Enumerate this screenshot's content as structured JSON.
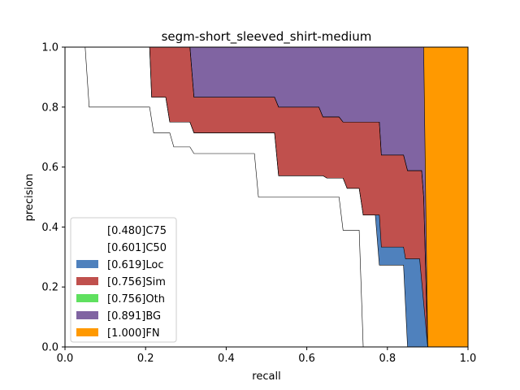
{
  "chart_data": {
    "type": "area",
    "title": "segm-short_sleeved_shirt-medium",
    "xlabel": "recall",
    "ylabel": "precision",
    "xlim": [
      0.0,
      1.0
    ],
    "ylim": [
      0.0,
      1.0
    ],
    "xticks": [
      "0.0",
      "0.2",
      "0.4",
      "0.6",
      "0.8",
      "1.0"
    ],
    "yticks": [
      "0.0",
      "0.2",
      "0.4",
      "0.6",
      "0.8",
      "1.0"
    ],
    "grid": false,
    "legend_position": "lower-left",
    "series": [
      {
        "name": "[0.480]C75",
        "color": "#ffffff",
        "points": [
          [
            0.0,
            1.0
          ],
          [
            0.05,
            1.0
          ],
          [
            0.06,
            0.8
          ],
          [
            0.21,
            0.8
          ],
          [
            0.22,
            0.714
          ],
          [
            0.26,
            0.714
          ],
          [
            0.27,
            0.667
          ],
          [
            0.31,
            0.667
          ],
          [
            0.32,
            0.645
          ],
          [
            0.47,
            0.645
          ],
          [
            0.48,
            0.5
          ],
          [
            0.68,
            0.5
          ],
          [
            0.69,
            0.389
          ],
          [
            0.73,
            0.389
          ],
          [
            0.74,
            0.0
          ]
        ]
      },
      {
        "name": "[0.601]C50",
        "color": "#ffffff",
        "points": [
          [
            0.0,
            1.0
          ],
          [
            0.21,
            1.0
          ],
          [
            0.215,
            0.833
          ],
          [
            0.25,
            0.833
          ],
          [
            0.26,
            0.75
          ],
          [
            0.31,
            0.75
          ],
          [
            0.32,
            0.714
          ],
          [
            0.52,
            0.714
          ],
          [
            0.53,
            0.571
          ],
          [
            0.64,
            0.571
          ],
          [
            0.65,
            0.563
          ],
          [
            0.69,
            0.563
          ],
          [
            0.7,
            0.529
          ],
          [
            0.73,
            0.529
          ],
          [
            0.74,
            0.44
          ],
          [
            0.77,
            0.44
          ],
          [
            0.78,
            0.273
          ],
          [
            0.84,
            0.273
          ],
          [
            0.85,
            0.0
          ]
        ]
      },
      {
        "name": "[0.619]Loc",
        "color": "#4f81bd",
        "points": [
          [
            0.0,
            1.0
          ],
          [
            0.21,
            1.0
          ],
          [
            0.215,
            0.833
          ],
          [
            0.25,
            0.833
          ],
          [
            0.26,
            0.75
          ],
          [
            0.31,
            0.75
          ],
          [
            0.32,
            0.714
          ],
          [
            0.52,
            0.714
          ],
          [
            0.53,
            0.571
          ],
          [
            0.64,
            0.571
          ],
          [
            0.65,
            0.563
          ],
          [
            0.69,
            0.563
          ],
          [
            0.7,
            0.529
          ],
          [
            0.73,
            0.529
          ],
          [
            0.74,
            0.44
          ],
          [
            0.78,
            0.44
          ],
          [
            0.785,
            0.333
          ],
          [
            0.84,
            0.333
          ],
          [
            0.845,
            0.294
          ],
          [
            0.88,
            0.294
          ],
          [
            0.9,
            0.0
          ]
        ]
      },
      {
        "name": "[0.756]Sim",
        "color": "#c0504d",
        "points": [
          [
            0.0,
            1.0
          ],
          [
            0.31,
            1.0
          ],
          [
            0.32,
            0.833
          ],
          [
            0.52,
            0.833
          ],
          [
            0.53,
            0.8
          ],
          [
            0.63,
            0.8
          ],
          [
            0.64,
            0.767
          ],
          [
            0.68,
            0.767
          ],
          [
            0.69,
            0.75
          ],
          [
            0.78,
            0.75
          ],
          [
            0.785,
            0.64
          ],
          [
            0.84,
            0.64
          ],
          [
            0.85,
            0.588
          ],
          [
            0.885,
            0.588
          ],
          [
            0.89,
            0.5
          ],
          [
            0.9,
            0.0
          ]
        ]
      },
      {
        "name": "[0.756]Oth",
        "color": "#5fe05f",
        "points": [
          [
            0.0,
            1.0
          ],
          [
            0.31,
            1.0
          ],
          [
            0.32,
            0.833
          ],
          [
            0.52,
            0.833
          ],
          [
            0.53,
            0.8
          ],
          [
            0.63,
            0.8
          ],
          [
            0.64,
            0.767
          ],
          [
            0.68,
            0.767
          ],
          [
            0.69,
            0.75
          ],
          [
            0.78,
            0.75
          ],
          [
            0.785,
            0.64
          ],
          [
            0.84,
            0.64
          ],
          [
            0.85,
            0.588
          ],
          [
            0.885,
            0.588
          ],
          [
            0.89,
            0.5
          ],
          [
            0.9,
            0.0
          ]
        ]
      },
      {
        "name": "[0.891]BG",
        "color": "#8064a2",
        "points": [
          [
            0.0,
            1.0
          ],
          [
            0.89,
            1.0
          ],
          [
            0.9,
            0.0
          ]
        ]
      },
      {
        "name": "[1.000]FN",
        "color": "#ff9900",
        "points": [
          [
            0.0,
            1.0
          ],
          [
            1.0,
            1.0
          ],
          [
            1.0,
            0.0
          ]
        ]
      }
    ]
  }
}
